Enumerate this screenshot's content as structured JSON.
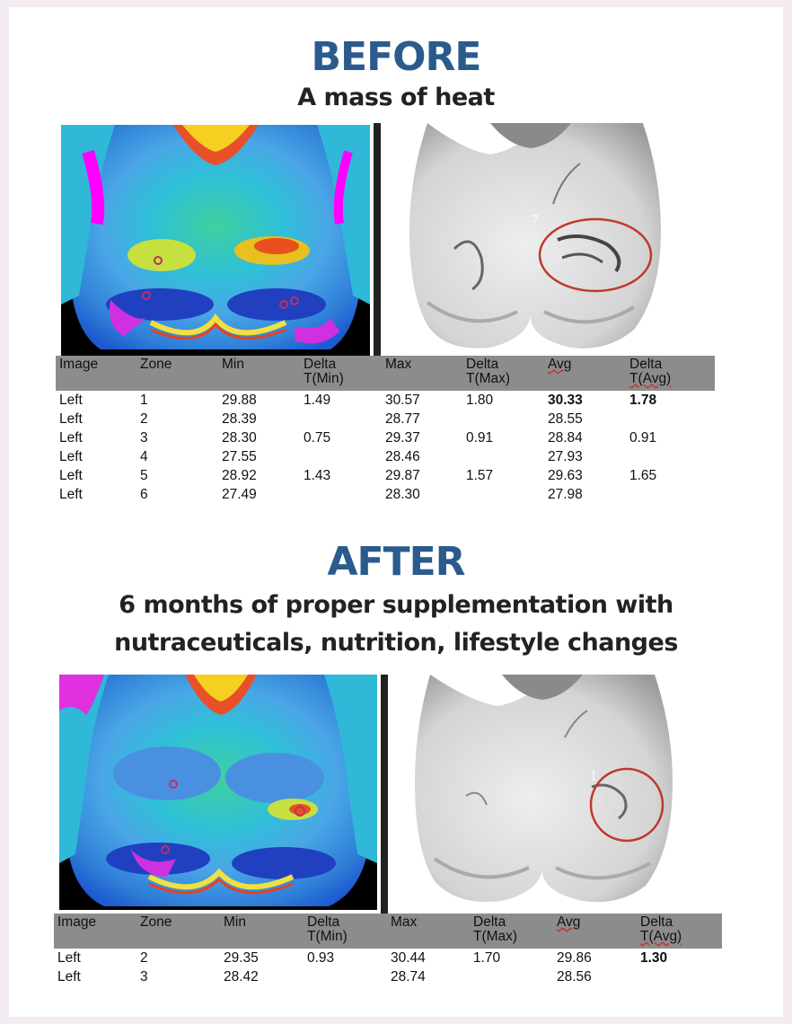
{
  "before": {
    "title": "BEFORE",
    "subtitle": "A mass of heat",
    "image_label": "7",
    "table": {
      "headers": [
        {
          "line1": "Image",
          "line2": ""
        },
        {
          "line1": "Zone",
          "line2": ""
        },
        {
          "line1": "Min",
          "line2": ""
        },
        {
          "line1": "Delta",
          "line2": "T(Min)"
        },
        {
          "line1": "Max",
          "line2": ""
        },
        {
          "line1": "Delta",
          "line2": "T(Max)"
        },
        {
          "line1": "Avg",
          "line2": ""
        },
        {
          "line1": "Delta",
          "line2": "T(Avg)"
        }
      ],
      "rows": [
        [
          "Left",
          "1",
          "29.88",
          "1.49",
          "30.57",
          "1.80",
          "30.33",
          "1.78"
        ],
        [
          "Left",
          "2",
          "28.39",
          "",
          "28.77",
          "",
          "28.55",
          ""
        ],
        [
          "Left",
          "3",
          "28.30",
          "0.75",
          "29.37",
          "0.91",
          "28.84",
          "0.91"
        ],
        [
          "Left",
          "4",
          "27.55",
          "",
          "28.46",
          "",
          "27.93",
          ""
        ],
        [
          "Left",
          "5",
          "28.92",
          "1.43",
          "29.87",
          "1.57",
          "29.63",
          "1.65"
        ],
        [
          "Left",
          "6",
          "27.49",
          "",
          "28.30",
          "",
          "27.98",
          ""
        ]
      ]
    }
  },
  "after": {
    "title": "AFTER",
    "subtitle_line1": "6 months of proper supplementation with",
    "subtitle_line2": "nutraceuticals, nutrition, lifestyle changes",
    "image_label": "1",
    "table": {
      "headers": [
        {
          "line1": "Image",
          "line2": ""
        },
        {
          "line1": "Zone",
          "line2": ""
        },
        {
          "line1": "Min",
          "line2": ""
        },
        {
          "line1": "Delta",
          "line2": "T(Min)"
        },
        {
          "line1": "Max",
          "line2": ""
        },
        {
          "line1": "Delta",
          "line2": "T(Max)"
        },
        {
          "line1": "Avg",
          "line2": ""
        },
        {
          "line1": "Delta",
          "line2": "T(Avg)"
        }
      ],
      "rows": [
        [
          "Left",
          "2",
          "29.35",
          "0.93",
          "30.44",
          "1.70",
          "29.86",
          "1.30"
        ],
        [
          "Left",
          "3",
          "28.42",
          "",
          "28.74",
          "",
          "28.56",
          ""
        ]
      ]
    }
  },
  "colors": {
    "heading": "#2a5b8c",
    "table_header": "#8c8c8c",
    "circle": "#c0392b"
  }
}
